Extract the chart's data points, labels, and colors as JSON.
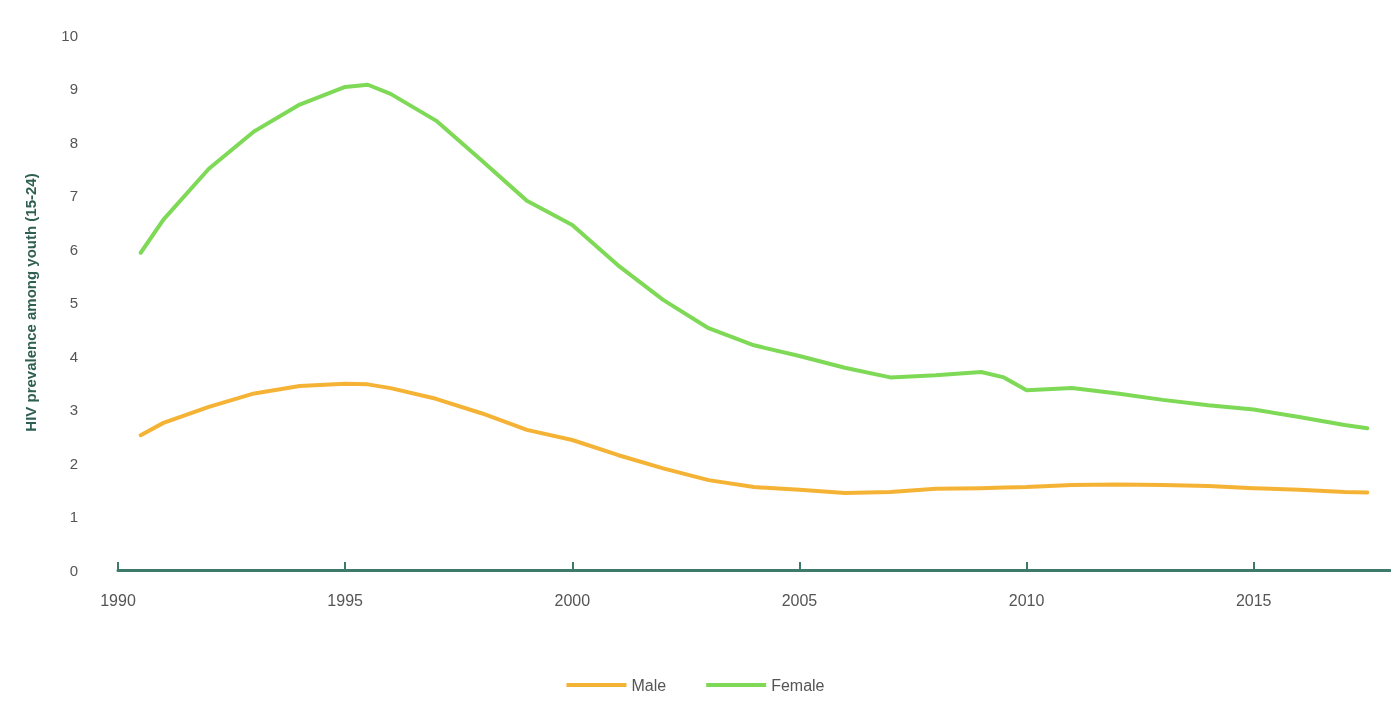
{
  "chart_data": {
    "type": "line",
    "ylabel": "HIV prevalence among youth (15-24)",
    "x": [
      1990.5,
      1991,
      1992,
      1993,
      1994,
      1995,
      1995.5,
      1996,
      1997,
      1998,
      1999,
      2000,
      2001,
      2002,
      2003,
      2004,
      2005,
      2006,
      2007,
      2008,
      2009,
      2009.5,
      2010,
      2011,
      2012,
      2013,
      2014,
      2015,
      2016,
      2017,
      2017.5
    ],
    "series": [
      {
        "name": "Male",
        "color": "#f5b335",
        "values": [
          2.52,
          2.75,
          3.05,
          3.3,
          3.44,
          3.48,
          3.47,
          3.4,
          3.2,
          2.93,
          2.62,
          2.43,
          2.15,
          1.9,
          1.68,
          1.55,
          1.5,
          1.44,
          1.46,
          1.52,
          1.53,
          1.54,
          1.55,
          1.59,
          1.6,
          1.59,
          1.57,
          1.53,
          1.5,
          1.46,
          1.45
        ]
      },
      {
        "name": "Female",
        "color": "#7ed957",
        "values": [
          5.93,
          6.55,
          7.5,
          8.2,
          8.7,
          9.03,
          9.07,
          8.9,
          8.4,
          7.66,
          6.9,
          6.45,
          5.7,
          5.05,
          4.52,
          4.2,
          4.0,
          3.78,
          3.6,
          3.64,
          3.7,
          3.6,
          3.36,
          3.4,
          3.3,
          3.18,
          3.08,
          3.0,
          2.86,
          2.71,
          2.65
        ]
      }
    ],
    "xlim": [
      1990,
      2018
    ],
    "xticks": [
      1990,
      1995,
      2000,
      2005,
      2010,
      2015
    ],
    "ylim": [
      0,
      10
    ],
    "yticks": [
      0,
      1,
      2,
      3,
      4,
      5,
      6,
      7,
      8,
      9,
      10
    ],
    "grid": false,
    "legend": "bottom",
    "marker": "none",
    "line_style": "solid"
  }
}
